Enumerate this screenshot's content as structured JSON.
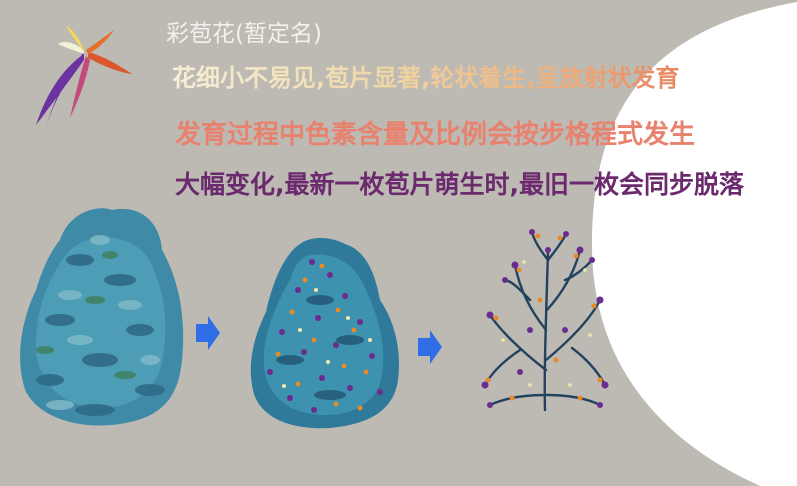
{
  "title": "彩苞花(暂定名)",
  "lines": [
    "花细小不易见,苞片显著,轮状着生,呈放射状发育",
    "发育过程中色素含量及比例会按步格程式发生",
    "大幅变化,最新一枚苞片萌生时,最旧一枚会同步脱落"
  ],
  "colors": {
    "canvas_gray": "#bdbab4",
    "title_text": "#f3f1ec",
    "line2_text": "#e8826e",
    "line3_text": "#6b2a6d",
    "arrow_blue": "#2f6ee6",
    "shrub_teal": "#3f8aa6",
    "bract_purple": "#6a2c8f",
    "bract_orange": "#e8892a"
  },
  "stages": [
    {
      "name": "stage-1-foliage"
    },
    {
      "name": "stage-2-flowering"
    },
    {
      "name": "stage-3-bare-bracts"
    }
  ]
}
